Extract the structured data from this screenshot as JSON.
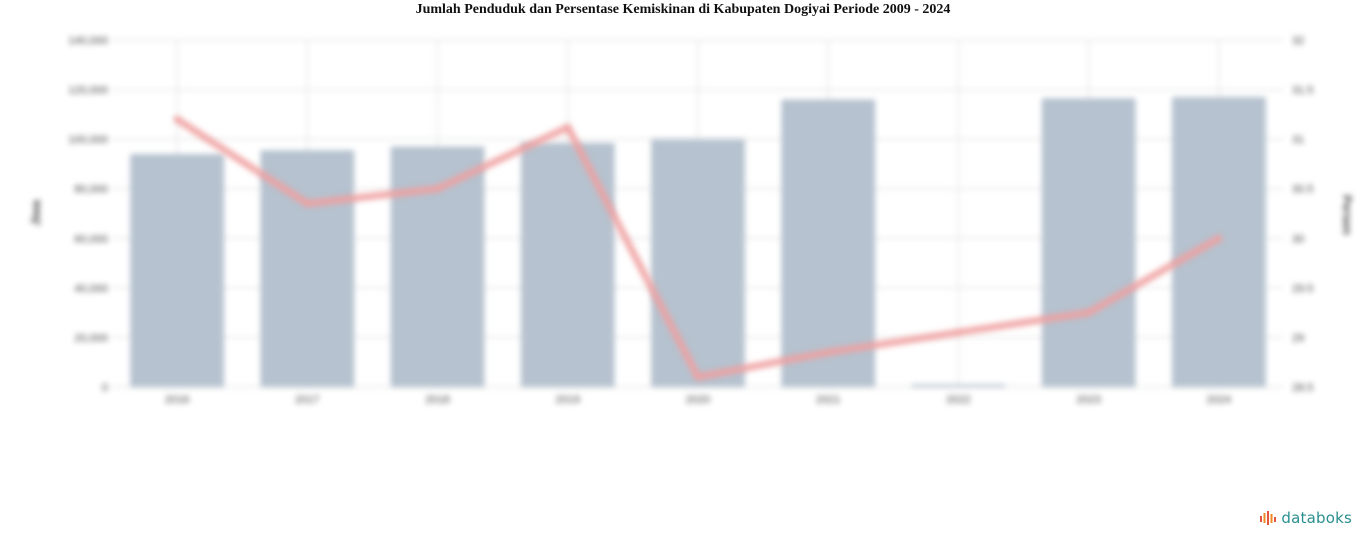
{
  "title": "Jumlah Penduduk dan Persentase Kemiskinan di Kabupaten Dogiyai Periode 2009 - 2024",
  "brand": "databoks",
  "colors": {
    "bar": "#b6c2cf",
    "line": "#f0a0a0",
    "grid": "#e6e6e6",
    "brand": "#2a8f8f"
  },
  "chart_data": {
    "type": "bar",
    "categories": [
      "2016",
      "2017",
      "2018",
      "2019",
      "2020",
      "2021",
      "2022",
      "2023",
      "2024"
    ],
    "y_left_label": "Jiwa",
    "y_right_label": "Persen",
    "y_left_ticks": [
      "0",
      "20,000",
      "40,000",
      "60,000",
      "80,000",
      "100,000",
      "120,000",
      "140,000"
    ],
    "y_right_ticks": [
      "28.5",
      "29",
      "29.5",
      "30",
      "30.5",
      "31",
      "31.5",
      "32"
    ],
    "y_left_range": [
      0,
      140000
    ],
    "y_right_range": [
      28.5,
      32
    ],
    "grid": true,
    "series": [
      {
        "name": "Jumlah Penduduk",
        "type": "bar",
        "axis": "left",
        "values": [
          94000,
          95500,
          97000,
          98500,
          100000,
          116000,
          1000,
          116500,
          117000
        ]
      },
      {
        "name": "Persentase Kemiskinan",
        "type": "line",
        "axis": "right",
        "values": [
          31.2,
          30.35,
          30.5,
          31.12,
          28.6,
          28.85,
          29.05,
          29.25,
          30.0
        ]
      }
    ]
  }
}
